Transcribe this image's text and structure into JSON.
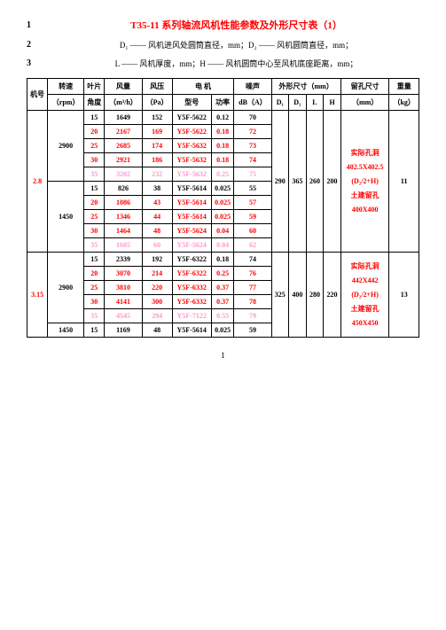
{
  "header": {
    "title": "T35-11 系列轴流风机性能参数及外形尺寸表（1）",
    "line2": "D₁ —— 风机进风处圆筒直径，mm；D₂ —— 风机圆筒直径，mm；",
    "line3": "L —— 风机厚度，mm；H —— 风机圆筒中心至风机底座距离，mm；",
    "nums": [
      "1",
      "2",
      "3"
    ]
  },
  "cols": {
    "jihao": "机号",
    "zhuansu": "转速",
    "zhuansu_unit": "（rpm）",
    "yepian": "叶片",
    "yepian_sub": "角度",
    "fengliang": "风量",
    "fengliang_unit": "（m³/h）",
    "fengya": "风压",
    "fengya_unit": "（Pa）",
    "dianji": "电  机",
    "xinghao": "型号",
    "gonglv": "功率",
    "zaosheng": "噪声",
    "zaosheng_unit": "dB（A）",
    "waixing": "外形尺寸",
    "waixing_unit": "（mm）",
    "d1": "D₁",
    "d2": "D₂",
    "l": "L",
    "h": "H",
    "liukong": "留孔尺寸",
    "liukong_unit": "（mm）",
    "zhongliang": "重量",
    "zhongliang_unit": "（kg）"
  },
  "g1": {
    "jihao": "2.8",
    "speed1": "2900",
    "speed2": "1450",
    "r": [
      {
        "a": "15",
        "fl": "1649",
        "fy": "152",
        "xh": "Y5F-5622",
        "gl": "0.12",
        "zs": "70",
        "c": "black"
      },
      {
        "a": "20",
        "fl": "2167",
        "fy": "169",
        "xh": "Y5F-5622",
        "gl": "0.18",
        "zs": "72",
        "c": "red"
      },
      {
        "a": "25",
        "fl": "2685",
        "fy": "174",
        "xh": "Y5F-5632",
        "gl": "0.18",
        "zs": "73",
        "c": "red"
      },
      {
        "a": "30",
        "fl": "2921",
        "fy": "186",
        "xh": "Y5F-5632",
        "gl": "0.18",
        "zs": "74",
        "c": "red"
      },
      {
        "a": "35",
        "fl": "3202",
        "fy": "232",
        "xh": "Y5F-5632",
        "gl": "0.25",
        "zs": "75",
        "c": "pink"
      },
      {
        "a": "15",
        "fl": "826",
        "fy": "38",
        "xh": "Y5F-5614",
        "gl": "0.025",
        "zs": "55",
        "c": "black"
      },
      {
        "a": "20",
        "fl": "1086",
        "fy": "43",
        "xh": "Y5F-5614",
        "gl": "0.025",
        "zs": "57",
        "c": "red"
      },
      {
        "a": "25",
        "fl": "1346",
        "fy": "44",
        "xh": "Y5F-5614",
        "gl": "0.025",
        "zs": "59",
        "c": "red"
      },
      {
        "a": "30",
        "fl": "1464",
        "fy": "48",
        "xh": "Y5F-5624",
        "gl": "0.04",
        "zs": "60",
        "c": "red"
      },
      {
        "a": "35",
        "fl": "1605",
        "fy": "60",
        "xh": "Y5F-5624",
        "gl": "0.04",
        "zs": "62",
        "c": "pink"
      }
    ],
    "d1": "290",
    "d2": "365",
    "l": "260",
    "h": "200",
    "lk1": "实际孔洞",
    "lk2": "402.5X402.5",
    "lk3": "(D₂/2+H)",
    "lk4": "土建留孔",
    "lk5": "400X400",
    "zl": "11"
  },
  "g2": {
    "jihao": "3.15",
    "speed1": "2900",
    "speed2": "1450",
    "r": [
      {
        "a": "15",
        "fl": "2339",
        "fy": "192",
        "xh": "Y5F-6322",
        "gl": "0.18",
        "zs": "74",
        "c": "black"
      },
      {
        "a": "20",
        "fl": "3070",
        "fy": "214",
        "xh": "Y5F-6322",
        "gl": "0.25",
        "zs": "76",
        "c": "red"
      },
      {
        "a": "25",
        "fl": "3810",
        "fy": "220",
        "xh": "Y5F-6332",
        "gl": "0.37",
        "zs": "77",
        "c": "red"
      },
      {
        "a": "30",
        "fl": "4141",
        "fy": "300",
        "xh": "Y5F-6332",
        "gl": "0.37",
        "zs": "78",
        "c": "red"
      },
      {
        "a": "35",
        "fl": "4545",
        "fy": "294",
        "xh": "Y5F-7122",
        "gl": "0.55",
        "zs": "79",
        "c": "pink"
      },
      {
        "a": "15",
        "fl": "1169",
        "fy": "48",
        "xh": "Y5F-5614",
        "gl": "0.025",
        "zs": "59",
        "c": "black"
      }
    ],
    "d1": "325",
    "d2": "400",
    "l": "280",
    "h": "220",
    "lk1": "实际孔洞",
    "lk2": "442X442",
    "lk3": "(D₂/2+H)",
    "lk4": "土建留孔",
    "lk5": "450X450",
    "zl": "13"
  },
  "pagenum": "1"
}
